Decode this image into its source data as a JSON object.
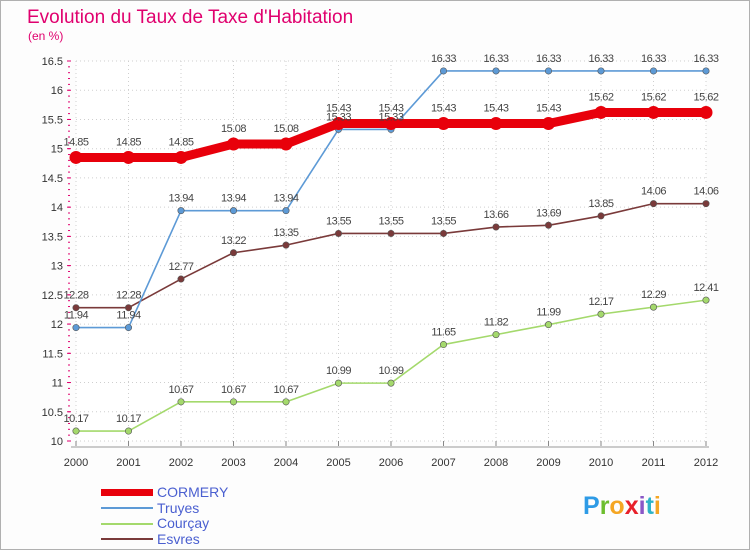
{
  "title": "Evolution du Taux de Taxe d'Habitation",
  "subtitle": "(en %)",
  "logo": [
    "P",
    "r",
    "o",
    "x",
    "i",
    "t",
    "i"
  ],
  "logo_colors": [
    "#2e9be6",
    "#6dbe2e",
    "#f5a623",
    "#e8202a",
    "#8a57c7",
    "#2eb3c7",
    "#f5a623"
  ],
  "chart_data": {
    "type": "line",
    "title": "Evolution du Taux de Taxe d'Habitation",
    "ylabel": "(en %)",
    "xlabel": "",
    "categories": [
      "2000",
      "2001",
      "2002",
      "2003",
      "2004",
      "2005",
      "2006",
      "2007",
      "2008",
      "2009",
      "2010",
      "2011",
      "2012"
    ],
    "ylim": [
      10,
      16.5
    ],
    "yticks": [
      "10",
      "10.5",
      "11",
      "11.5",
      "12",
      "12.5",
      "13",
      "13.5",
      "14",
      "14.5",
      "15",
      "15.5",
      "16",
      "16.5"
    ],
    "grid": true,
    "legend_position": "bottom-left",
    "series": [
      {
        "name": "CORMERY",
        "color": "#e8000b",
        "values": [
          14.85,
          14.85,
          14.85,
          15.08,
          15.08,
          15.43,
          15.43,
          15.43,
          15.43,
          15.43,
          15.62,
          15.62,
          15.62
        ],
        "labels": [
          "14.85",
          "14.85",
          "14.85",
          "15.08",
          "15.08",
          "15.43",
          "15.43",
          "15.43",
          "15.43",
          "15.43",
          "15.62",
          "15.62",
          "15.62"
        ]
      },
      {
        "name": "Truyes",
        "color": "#5d9ad6",
        "values": [
          11.94,
          11.94,
          13.94,
          13.94,
          13.94,
          15.33,
          15.33,
          16.33,
          16.33,
          16.33,
          16.33,
          16.33,
          16.33
        ],
        "labels": [
          "11.94",
          "11.94",
          "13.94",
          "13.94",
          "13.94",
          "15.33",
          "15.33",
          "16.33",
          "16.33",
          "16.33",
          "16.33",
          "16.33",
          "16.33"
        ]
      },
      {
        "name": "Courçay",
        "color": "#a4d96c",
        "values": [
          10.17,
          10.17,
          10.67,
          10.67,
          10.67,
          10.99,
          10.99,
          11.65,
          11.82,
          11.99,
          12.17,
          12.29,
          12.41
        ],
        "labels": [
          "10.17",
          "10.17",
          "10.67",
          "10.67",
          "10.67",
          "10.99",
          "10.99",
          "11.65",
          "11.82",
          "11.99",
          "12.17",
          "12.29",
          "12.41"
        ]
      },
      {
        "name": "Esvres",
        "color": "#7a3a3a",
        "values": [
          12.28,
          12.28,
          12.77,
          13.22,
          13.35,
          13.55,
          13.55,
          13.55,
          13.66,
          13.69,
          13.85,
          14.06,
          14.06
        ],
        "labels": [
          "12.28",
          "12.28",
          "12.77",
          "13.22",
          "13.35",
          "13.55",
          "13.55",
          "13.55",
          "13.66",
          "13.69",
          "13.85",
          "14.06",
          "14.06"
        ]
      }
    ]
  }
}
